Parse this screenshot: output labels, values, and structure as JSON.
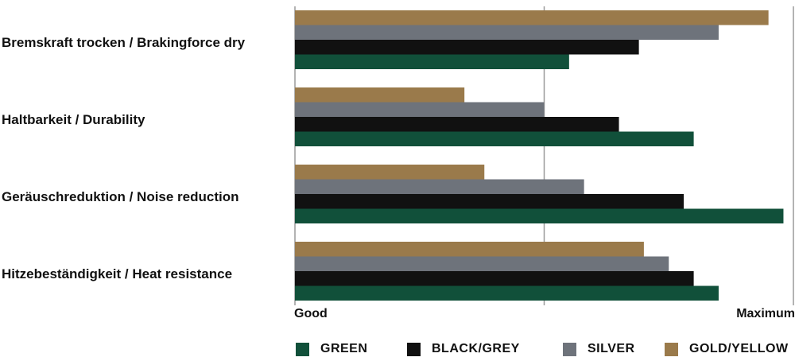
{
  "chart_data": {
    "type": "bar",
    "orientation": "horizontal",
    "categories": [
      "Bremskraft trocken / Brakingforce dry",
      "Haltbarkeit / Durability",
      "Geräuschreduktion / Noise reduction",
      "Hitzebeständigkeit / Heat resistance"
    ],
    "series": [
      {
        "name": "GOLD/YELLOW",
        "color": "#9a7a4b",
        "values": [
          95,
          34,
          38,
          70
        ]
      },
      {
        "name": "SILVER",
        "color": "#6e737b",
        "values": [
          85,
          50,
          58,
          75
        ]
      },
      {
        "name": "BLACK/GREY",
        "color": "#111111",
        "values": [
          69,
          65,
          78,
          80
        ]
      },
      {
        "name": "GREEN",
        "color": "#11503a",
        "values": [
          55,
          80,
          98,
          85
        ]
      }
    ],
    "legend_order": [
      "GREEN",
      "BLACK/GREY",
      "SILVER",
      "GOLD/YELLOW"
    ],
    "xlim": [
      0,
      100
    ],
    "x_axis_labels": {
      "min": "Good",
      "max": "Maximum"
    },
    "grid": true,
    "legend_position": "bottom"
  }
}
